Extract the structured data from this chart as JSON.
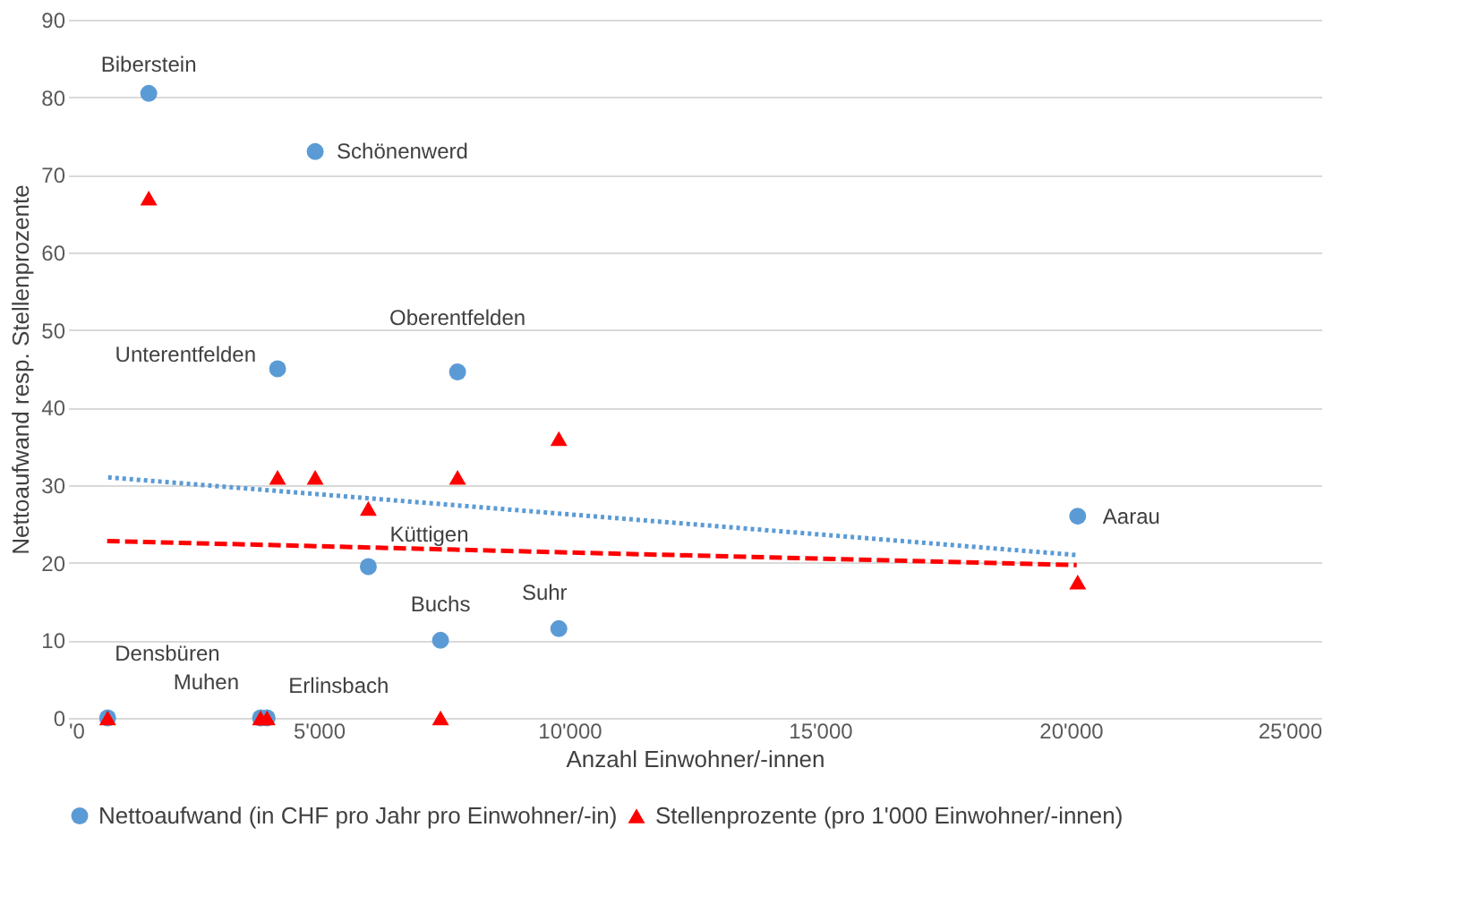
{
  "chart_data": {
    "type": "scatter",
    "xlabel": "Anzahl Einwohner/-innen",
    "ylabel": "Nettoaufwand resp. Stellenprozente",
    "x": [
      1610,
      4930,
      4180,
      7770,
      20140,
      5990,
      7430,
      9790,
      790,
      3840,
      3970
    ],
    "series": [
      {
        "name": "Nettoaufwand (in CHF pro Jahr pro Einwohner/-in)",
        "color": "#5b9bd5",
        "marker": "circle",
        "values": [
          80.5,
          73,
          45,
          44.6,
          26,
          19.5,
          10,
          11.5,
          0,
          0,
          0
        ]
      },
      {
        "name": "Stellenprozente (pro 1'000 Einwohner/-innen)",
        "color": "#ff0000",
        "marker": "triangle",
        "values": [
          67,
          31,
          31,
          31,
          17.5,
          27,
          0,
          36,
          0,
          0,
          0
        ]
      },
      {
        "type": "line",
        "color": "#5b9bd5",
        "line_style": "dotted",
        "x": [
          800,
          20100
        ],
        "values": [
          31,
          21
        ]
      },
      {
        "type": "line",
        "color": "#ff0000",
        "line_style": "dashed",
        "x": [
          780,
          20120
        ],
        "values": [
          22.8,
          19.7
        ]
      }
    ],
    "xlim": [
      0,
      25000
    ],
    "xticks": [
      {
        "value": 0,
        "label": "'0"
      },
      {
        "value": 5000,
        "label": "5'000"
      },
      {
        "value": 10000,
        "label": "10'000"
      },
      {
        "value": 15000,
        "label": "15'000"
      },
      {
        "value": 20000,
        "label": "20'000"
      },
      {
        "value": 25000,
        "label": "25'000"
      }
    ],
    "ylim": [
      0,
      90
    ],
    "yticks": [
      0,
      10,
      20,
      30,
      40,
      50,
      60,
      70,
      80,
      90
    ],
    "grid": "y",
    "legend": "bottom",
    "annotations": [
      {
        "text": "Biberstein",
        "x": 1610,
        "y": 80.5
      },
      {
        "text": "Schönenwerd",
        "x": 4930,
        "y": 73
      },
      {
        "text": "Unterentfelden",
        "x": 4180,
        "y": 45
      },
      {
        "text": "Oberentfelden",
        "x": 7770,
        "y": 44.6
      },
      {
        "text": "Aarau",
        "x": 20140,
        "y": 26
      },
      {
        "text": "Küttigen",
        "x": 5990,
        "y": 19.5
      },
      {
        "text": "Buchs",
        "x": 7430,
        "y": 10
      },
      {
        "text": "Suhr",
        "x": 9790,
        "y": 11.5
      },
      {
        "text": "Densbüren",
        "x": 790,
        "y": 0
      },
      {
        "text": "Muhen",
        "x": 3840,
        "y": 0
      },
      {
        "text": "Erlinsbach",
        "x": 3970,
        "y": 0
      }
    ]
  }
}
